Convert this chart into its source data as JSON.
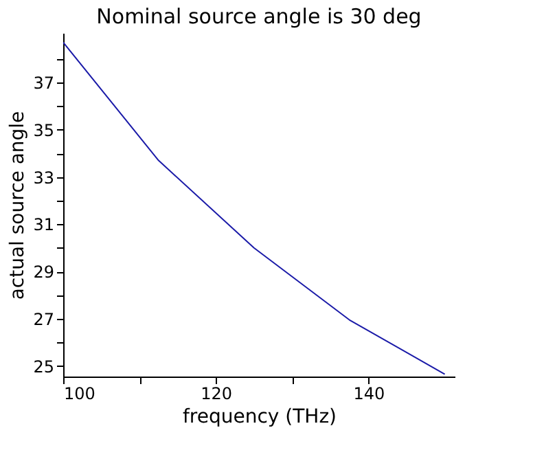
{
  "chart_data": {
    "type": "line",
    "title": "Nominal source angle is 30 deg",
    "xlabel": "frequency  (THz)",
    "ylabel": "actual source angle",
    "x": [
      100,
      112.5,
      125,
      137.5,
      150
    ],
    "series": [
      {
        "color": "#1a1aa8",
        "values": [
          38.7,
          33.7,
          30.0,
          26.95,
          24.65
        ]
      }
    ],
    "xlim": [
      100,
      151.3
    ],
    "ylim": [
      24.55,
      39.1
    ],
    "xticks": [
      100,
      {
        "value": 110,
        "label": null
      },
      120,
      {
        "value": 130,
        "label": null
      },
      140
    ],
    "yticks": [
      25,
      {
        "value": 26,
        "label": null
      },
      27,
      {
        "value": 28,
        "label": null
      },
      29,
      {
        "value": 30,
        "label": null
      },
      31,
      {
        "value": 32,
        "label": null
      },
      33,
      {
        "value": 34,
        "label": null
      },
      35,
      {
        "value": 36,
        "label": null
      },
      37,
      {
        "value": 38,
        "label": null
      }
    ],
    "grid": false,
    "legend": false,
    "marker": "none",
    "line_style": "solid"
  }
}
